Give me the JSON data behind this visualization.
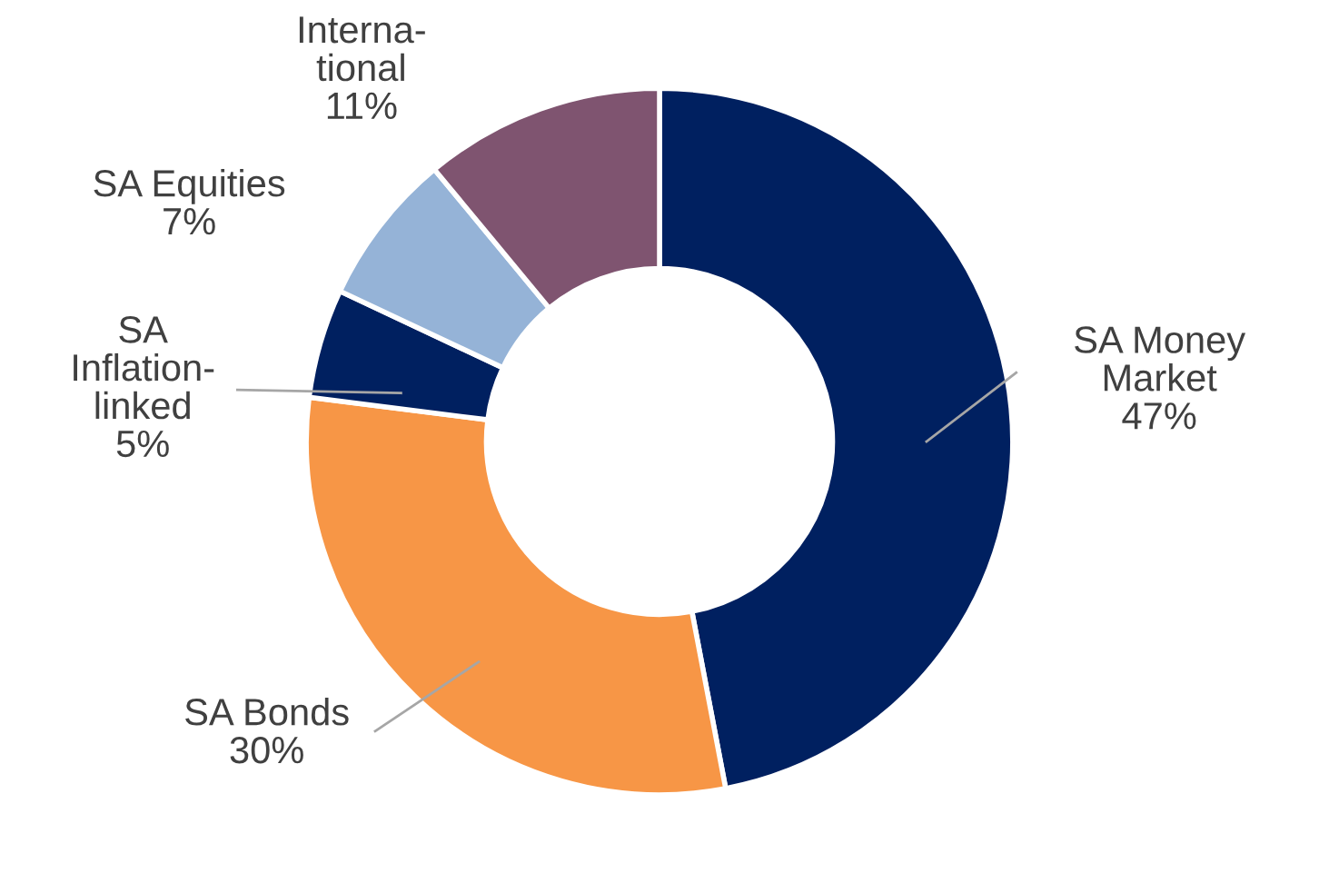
{
  "chart_data": {
    "type": "donut",
    "categories": [
      "SA Money\nMarket",
      "SA Bonds",
      "SA\nInflation-\nlinked",
      "SA Equities",
      "Interna-\ntional"
    ],
    "values": [
      47,
      30,
      5,
      7,
      11
    ],
    "value_labels": [
      "47%",
      "30%",
      "5%",
      "7%",
      "11%"
    ],
    "colors": [
      "#002060",
      "#f79646",
      "#002060",
      "#95b3d7",
      "#7f5470"
    ],
    "legend": false
  }
}
